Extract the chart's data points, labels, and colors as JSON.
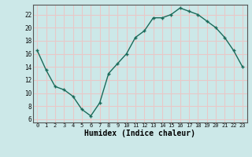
{
  "x": [
    0,
    1,
    2,
    3,
    4,
    5,
    6,
    7,
    8,
    9,
    10,
    11,
    12,
    13,
    14,
    15,
    16,
    17,
    18,
    19,
    20,
    21,
    22,
    23
  ],
  "y": [
    16.5,
    13.5,
    11.0,
    10.5,
    9.5,
    7.5,
    6.5,
    8.5,
    13.0,
    14.5,
    16.0,
    18.5,
    19.5,
    21.5,
    21.5,
    22.0,
    23.0,
    22.5,
    22.0,
    21.0,
    20.0,
    18.5,
    16.5,
    14.0
  ],
  "xlabel": "Humidex (Indice chaleur)",
  "line_color": "#1a6b5a",
  "marker": "+",
  "bg_color": "#cce8e8",
  "grid_color": "#e8c8c8",
  "tick_labels": [
    "0",
    "1",
    "2",
    "3",
    "4",
    "5",
    "6",
    "7",
    "8",
    "9",
    "10",
    "11",
    "12",
    "13",
    "14",
    "15",
    "16",
    "17",
    "18",
    "19",
    "20",
    "21",
    "22",
    "23"
  ],
  "ylim": [
    5.5,
    23.5
  ],
  "yticks": [
    6,
    8,
    10,
    12,
    14,
    16,
    18,
    20,
    22
  ],
  "xlim": [
    -0.5,
    23.5
  ]
}
